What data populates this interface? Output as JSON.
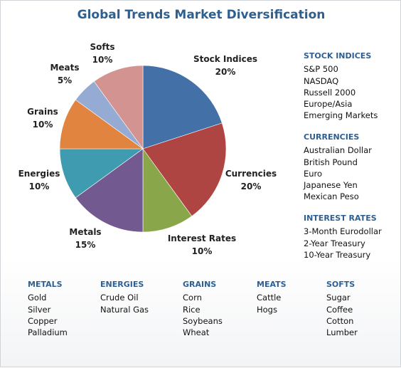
{
  "chart_data": {
    "type": "pie",
    "title": "Global Trends Market Diversification",
    "slices": [
      {
        "label": "Stock Indices",
        "value": 20,
        "value_text": "20%",
        "color": "#4470a8"
      },
      {
        "label": "Currencies",
        "value": 20,
        "value_text": "20%",
        "color": "#ae4542"
      },
      {
        "label": "Interest Rates",
        "value": 10,
        "value_text": "10%",
        "color": "#8aa64b"
      },
      {
        "label": "Metals",
        "value": 15,
        "value_text": "15%",
        "color": "#725a90"
      },
      {
        "label": "Energies",
        "value": 10,
        "value_text": "10%",
        "color": "#3f9bb0"
      },
      {
        "label": "Grains",
        "value": 10,
        "value_text": "10%",
        "color": "#e0843f"
      },
      {
        "label": "Meats",
        "value": 5,
        "value_text": "5%",
        "color": "#95abd3"
      },
      {
        "label": "Softs",
        "value": 10,
        "value_text": "10%",
        "color": "#d39391"
      }
    ]
  },
  "lists": {
    "stock_indices": {
      "title": "STOCK INDICES",
      "items": [
        "S&P 500",
        "NASDAQ",
        "Russell 2000",
        "Europe/Asia",
        "Emerging Markets"
      ]
    },
    "currencies": {
      "title": "CURRENCIES",
      "items": [
        "Australian Dollar",
        "British Pound",
        "Euro",
        "Japanese Yen",
        "Mexican Peso"
      ]
    },
    "interest_rates": {
      "title": "INTEREST  RATES",
      "items": [
        "3-Month Eurodollar",
        "2-Year Treasury",
        "10-Year Treasury"
      ]
    },
    "metals": {
      "title": "METALS",
      "items": [
        "Gold",
        "Silver",
        "Copper",
        "Palladium"
      ]
    },
    "energies": {
      "title": "ENERGIES",
      "items": [
        "Crude Oil",
        "Natural Gas"
      ]
    },
    "grains": {
      "title": "GRAINS",
      "items": [
        "Corn",
        "Rice",
        "Soybeans",
        "Wheat"
      ]
    },
    "meats": {
      "title": "MEATS",
      "items": [
        "Cattle",
        "Hogs"
      ]
    },
    "softs": {
      "title": "SOFTS",
      "items": [
        "Sugar",
        "Coffee",
        "Cotton",
        "Lumber"
      ]
    }
  }
}
